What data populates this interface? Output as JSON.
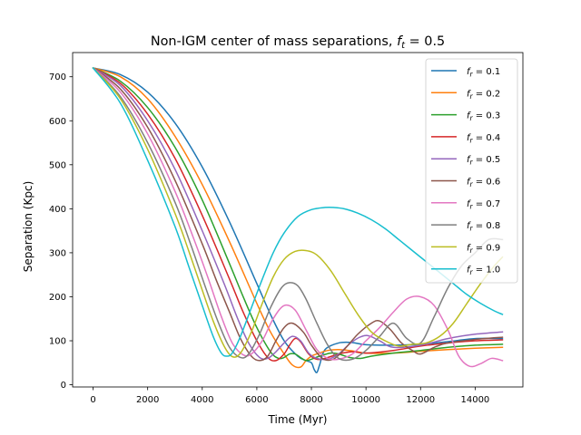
{
  "chart_data": {
    "type": "line",
    "title_prefix": "Non-IGM center of mass separations, ",
    "title_math": "f",
    "title_sub": "t",
    "title_suffix": " = 0.5",
    "xlabel": "Time (Myr)",
    "ylabel": "Separation (Kpc)",
    "xlim": [
      -750,
      15750
    ],
    "ylim": [
      -5,
      755
    ],
    "xticks": [
      0,
      2000,
      4000,
      6000,
      8000,
      10000,
      12000,
      14000
    ],
    "yticks": [
      0,
      100,
      200,
      300,
      400,
      500,
      600,
      700
    ],
    "grid": false,
    "legend_position": "top-right",
    "series": [
      {
        "name": "f_r = 0.1",
        "label_sym": "f",
        "label_sub": "r",
        "label_val": " = 0.1",
        "color": "#1f77b4",
        "x": [
          0,
          1000,
          2000,
          3000,
          4000,
          5000,
          6000,
          6500,
          7000,
          7500,
          7800,
          8000,
          8100,
          8200,
          8300,
          8500,
          9000,
          9500,
          10000,
          11000,
          12000,
          13000,
          14000,
          15000
        ],
        "y": [
          720,
          705,
          665,
          595,
          495,
          370,
          230,
          160,
          100,
          65,
          55,
          50,
          35,
          28,
          45,
          80,
          95,
          96,
          91,
          90,
          92,
          98,
          105,
          105
        ]
      },
      {
        "name": "f_r = 0.2",
        "label_sym": "f",
        "label_sub": "r",
        "label_val": " = 0.2",
        "color": "#ff7f0e",
        "x": [
          0,
          1000,
          2000,
          3000,
          4000,
          5000,
          6000,
          6500,
          7000,
          7300,
          7600,
          7800,
          8000,
          8200,
          8600,
          9000,
          9500,
          10000,
          11000,
          12000,
          13000,
          14000,
          15000
        ],
        "y": [
          720,
          700,
          650,
          565,
          455,
          325,
          185,
          120,
          70,
          45,
          40,
          55,
          65,
          70,
          78,
          80,
          77,
          72,
          72,
          76,
          80,
          83,
          85
        ]
      },
      {
        "name": "f_r = 0.3",
        "label_sym": "f",
        "label_sub": "r",
        "label_val": " = 0.3",
        "color": "#2ca02c",
        "x": [
          0,
          1000,
          2000,
          3000,
          4000,
          5000,
          5500,
          6000,
          6500,
          6800,
          7000,
          7200,
          7400,
          7600,
          7800,
          8000,
          8300,
          8700,
          9000,
          9400,
          9800,
          10200,
          11000,
          12000,
          13000,
          14000,
          15000
        ],
        "y": [
          720,
          690,
          630,
          540,
          420,
          275,
          200,
          130,
          75,
          60,
          62,
          70,
          70,
          62,
          55,
          58,
          65,
          72,
          70,
          62,
          60,
          65,
          72,
          78,
          85,
          90,
          92
        ]
      },
      {
        "name": "f_r = 0.4",
        "label_sym": "f",
        "label_sub": "r",
        "label_val": " = 0.4",
        "color": "#d62728",
        "x": [
          0,
          1000,
          2000,
          3000,
          4000,
          5000,
          5500,
          6000,
          6400,
          6700,
          7000,
          7200,
          7400,
          7600,
          7900,
          8200,
          8500,
          9000,
          9500,
          10000,
          11000,
          12000,
          13000,
          14000,
          15000
        ],
        "y": [
          720,
          685,
          615,
          515,
          385,
          240,
          165,
          100,
          62,
          55,
          70,
          90,
          105,
          98,
          70,
          58,
          60,
          70,
          75,
          72,
          78,
          88,
          95,
          100,
          102
        ]
      },
      {
        "name": "f_r = 0.5",
        "label_sym": "f",
        "label_sub": "r",
        "label_val": " = 0.5",
        "color": "#9467bd",
        "x": [
          0,
          1000,
          2000,
          3000,
          4000,
          4800,
          5300,
          5700,
          6100,
          6400,
          6700,
          7000,
          7300,
          7600,
          7900,
          8200,
          8600,
          9000,
          9500,
          10000,
          10500,
          11000,
          12000,
          13000,
          14000,
          15000
        ],
        "y": [
          720,
          680,
          600,
          490,
          350,
          230,
          150,
          95,
          62,
          60,
          75,
          95,
          110,
          100,
          72,
          60,
          58,
          70,
          98,
          112,
          100,
          85,
          90,
          105,
          115,
          120
        ]
      },
      {
        "name": "f_r = 0.6",
        "label_sym": "f",
        "label_sub": "r",
        "label_val": " = 0.6",
        "color": "#8c564b",
        "x": [
          0,
          1000,
          2000,
          3000,
          4000,
          4500,
          5000,
          5400,
          5800,
          6100,
          6400,
          6700,
          7000,
          7300,
          7700,
          8000,
          8400,
          8800,
          9200,
          9700,
          10200,
          10500,
          10900,
          11300,
          11700,
          12000,
          12500,
          13000,
          14000,
          15000
        ],
        "y": [
          720,
          672,
          585,
          465,
          320,
          240,
          165,
          105,
          65,
          55,
          65,
          100,
          130,
          140,
          120,
          90,
          60,
          58,
          80,
          115,
          140,
          145,
          125,
          95,
          78,
          70,
          85,
          95,
          103,
          108
        ]
      },
      {
        "name": "f_r = 0.7",
        "label_sym": "f",
        "label_sub": "r",
        "label_val": " = 0.7",
        "color": "#e377c2",
        "x": [
          0,
          1000,
          2000,
          3000,
          3700,
          4200,
          4700,
          5100,
          5500,
          5800,
          6200,
          6600,
          7000,
          7400,
          7800,
          8200,
          8600,
          9000,
          9500,
          10000,
          10500,
          11000,
          11500,
          12000,
          12500,
          13000,
          13400,
          13800,
          14200,
          14600,
          15000
        ],
        "y": [
          720,
          665,
          570,
          440,
          330,
          245,
          155,
          95,
          68,
          70,
          100,
          150,
          180,
          170,
          125,
          80,
          60,
          58,
          70,
          100,
          130,
          165,
          195,
          200,
          180,
          125,
          65,
          42,
          48,
          60,
          55
        ]
      },
      {
        "name": "f_r = 0.8",
        "label_sym": "f",
        "label_sub": "r",
        "label_val": " = 0.8",
        "color": "#7f7f7f",
        "x": [
          0,
          1000,
          2000,
          3000,
          3600,
          4100,
          4600,
          5000,
          5400,
          5700,
          6100,
          6500,
          6900,
          7200,
          7500,
          7800,
          8200,
          8600,
          9000,
          9500,
          10000,
          10500,
          11000,
          11500,
          12000,
          12500,
          13000,
          13500,
          14000,
          14500,
          15000
        ],
        "y": [
          720,
          655,
          550,
          415,
          315,
          225,
          140,
          85,
          62,
          70,
          115,
          175,
          220,
          232,
          225,
          195,
          140,
          90,
          60,
          58,
          78,
          110,
          140,
          105,
          95,
          155,
          220,
          270,
          300,
          330,
          330
        ]
      },
      {
        "name": "f_r = 0.9",
        "label_sym": "f",
        "label_sub": "r",
        "label_val": " = 0.9",
        "color": "#bcbd22",
        "x": [
          0,
          1000,
          2000,
          3000,
          3500,
          4000,
          4400,
          4800,
          5100,
          5400,
          5800,
          6200,
          6600,
          7000,
          7400,
          7800,
          8200,
          8700,
          9200,
          9700,
          10200,
          10700,
          11200,
          11700,
          12200,
          12700,
          13200,
          13700,
          14200,
          14700,
          15000
        ],
        "y": [
          720,
          650,
          535,
          390,
          305,
          215,
          145,
          88,
          64,
          72,
          120,
          185,
          245,
          285,
          303,
          305,
          295,
          260,
          210,
          160,
          120,
          100,
          88,
          92,
          95,
          110,
          140,
          185,
          230,
          270,
          290
        ]
      },
      {
        "name": "f_r = 1.0",
        "label_sym": "f",
        "label_sub": "r",
        "label_val": " = 1.0",
        "color": "#17becf",
        "x": [
          0,
          1000,
          2000,
          3000,
          3500,
          4000,
          4400,
          4700,
          4900,
          5100,
          5400,
          5800,
          6200,
          6600,
          7000,
          7500,
          8000,
          8500,
          8800,
          9200,
          9700,
          10200,
          10700,
          11200,
          11700,
          12200,
          12700,
          13200,
          13700,
          14200,
          14700,
          15000
        ],
        "y": [
          720,
          640,
          510,
          360,
          270,
          180,
          110,
          72,
          65,
          72,
          110,
          175,
          240,
          300,
          345,
          382,
          398,
          403,
          403,
          400,
          390,
          375,
          355,
          330,
          305,
          280,
          255,
          230,
          205,
          185,
          168,
          160
        ]
      }
    ]
  }
}
